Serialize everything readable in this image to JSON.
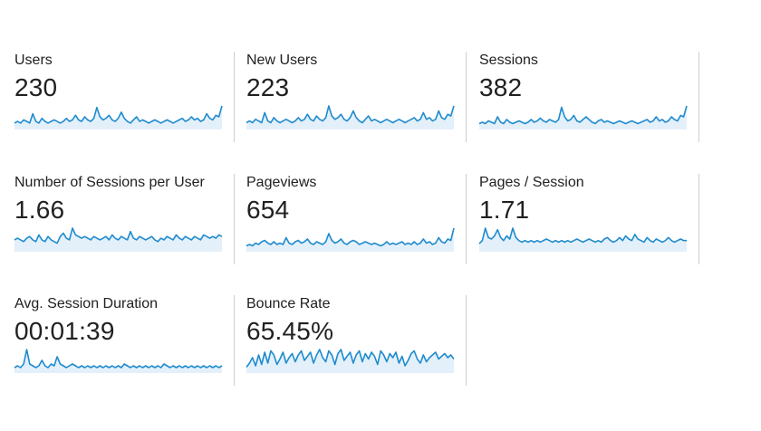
{
  "metrics": [
    {
      "label": "Users",
      "value": "230",
      "series": [
        3,
        4,
        3,
        5,
        4,
        3,
        9,
        4,
        3,
        6,
        4,
        3,
        4,
        5,
        4,
        3,
        4,
        6,
        4,
        5,
        8,
        5,
        4,
        7,
        5,
        4,
        6,
        13,
        7,
        5,
        6,
        8,
        5,
        4,
        6,
        10,
        6,
        4,
        3,
        5,
        7,
        4,
        5,
        4,
        3,
        4,
        5,
        4,
        3,
        4,
        5,
        4,
        3,
        4,
        5,
        6,
        4,
        5,
        7,
        5,
        6,
        4,
        5,
        9,
        6,
        5,
        8,
        7,
        14
      ]
    },
    {
      "label": "New Users",
      "value": "223",
      "series": [
        3,
        4,
        3,
        5,
        4,
        3,
        9,
        4,
        3,
        6,
        4,
        3,
        4,
        5,
        4,
        3,
        4,
        6,
        4,
        5,
        8,
        5,
        4,
        7,
        5,
        4,
        6,
        13,
        7,
        5,
        6,
        8,
        5,
        4,
        6,
        10,
        6,
        4,
        3,
        5,
        7,
        4,
        5,
        4,
        3,
        4,
        5,
        4,
        3,
        4,
        5,
        4,
        3,
        4,
        5,
        6,
        4,
        5,
        9,
        5,
        6,
        4,
        5,
        10,
        6,
        5,
        8,
        7,
        13
      ]
    },
    {
      "label": "Sessions",
      "value": "382",
      "series": [
        3,
        4,
        3,
        5,
        4,
        3,
        8,
        4,
        3,
        6,
        4,
        3,
        4,
        5,
        4,
        3,
        4,
        6,
        4,
        5,
        7,
        5,
        4,
        6,
        5,
        4,
        6,
        15,
        8,
        5,
        6,
        9,
        5,
        4,
        6,
        8,
        6,
        4,
        3,
        5,
        6,
        4,
        5,
        4,
        3,
        4,
        5,
        4,
        3,
        4,
        5,
        4,
        3,
        4,
        5,
        6,
        4,
        5,
        8,
        5,
        6,
        4,
        5,
        8,
        6,
        5,
        9,
        8,
        16
      ]
    },
    {
      "label": "Number of Sessions per User",
      "value": "1.66",
      "series": [
        6,
        7,
        6,
        5,
        7,
        8,
        6,
        5,
        9,
        6,
        5,
        8,
        6,
        5,
        4,
        8,
        10,
        7,
        6,
        13,
        9,
        8,
        7,
        8,
        7,
        6,
        8,
        7,
        6,
        7,
        8,
        6,
        9,
        7,
        6,
        8,
        7,
        6,
        11,
        7,
        6,
        8,
        7,
        6,
        7,
        8,
        6,
        5,
        7,
        6,
        8,
        7,
        6,
        9,
        7,
        6,
        8,
        7,
        6,
        8,
        7,
        6,
        9,
        8,
        7,
        8,
        7,
        9,
        8
      ]
    },
    {
      "label": "Pageviews",
      "value": "654",
      "series": [
        3,
        4,
        3,
        5,
        4,
        6,
        7,
        5,
        4,
        6,
        4,
        5,
        4,
        9,
        5,
        4,
        6,
        7,
        5,
        6,
        8,
        5,
        4,
        6,
        5,
        4,
        6,
        12,
        7,
        5,
        6,
        8,
        5,
        4,
        6,
        7,
        6,
        4,
        5,
        6,
        5,
        4,
        5,
        4,
        3,
        4,
        6,
        4,
        5,
        4,
        5,
        6,
        4,
        5,
        4,
        6,
        4,
        5,
        8,
        5,
        6,
        4,
        5,
        9,
        6,
        5,
        8,
        7,
        16
      ]
    },
    {
      "label": "Pages / Session",
      "value": "1.71",
      "series": [
        4,
        6,
        14,
        8,
        7,
        9,
        13,
        8,
        6,
        9,
        7,
        14,
        8,
        6,
        5,
        6,
        5,
        6,
        5,
        6,
        5,
        6,
        7,
        6,
        5,
        6,
        5,
        6,
        5,
        6,
        5,
        6,
        7,
        6,
        5,
        6,
        7,
        6,
        5,
        6,
        5,
        7,
        8,
        6,
        5,
        6,
        8,
        6,
        9,
        7,
        6,
        10,
        7,
        6,
        5,
        8,
        6,
        5,
        7,
        6,
        5,
        6,
        8,
        6,
        5,
        6,
        7,
        6,
        6
      ]
    },
    {
      "label": "Avg. Session Duration",
      "value": "00:01:39",
      "series": [
        2,
        3,
        2,
        4,
        12,
        4,
        3,
        2,
        3,
        6,
        3,
        2,
        4,
        3,
        8,
        4,
        3,
        2,
        3,
        4,
        3,
        2,
        3,
        2,
        3,
        2,
        3,
        2,
        3,
        2,
        3,
        2,
        3,
        2,
        3,
        2,
        4,
        3,
        2,
        3,
        2,
        3,
        2,
        3,
        2,
        3,
        2,
        3,
        2,
        4,
        3,
        2,
        3,
        2,
        3,
        2,
        3,
        2,
        3,
        2,
        3,
        2,
        3,
        2,
        3,
        2,
        3,
        2,
        3
      ]
    },
    {
      "label": "Bounce Rate",
      "value": "65.45%",
      "series": [
        3,
        6,
        10,
        4,
        12,
        5,
        14,
        6,
        15,
        12,
        5,
        9,
        14,
        6,
        10,
        13,
        7,
        12,
        15,
        8,
        11,
        14,
        6,
        12,
        16,
        10,
        7,
        15,
        12,
        5,
        13,
        16,
        8,
        11,
        14,
        6,
        12,
        15,
        7,
        13,
        9,
        14,
        11,
        5,
        15,
        12,
        7,
        13,
        10,
        14,
        6,
        11,
        4,
        8,
        13,
        15,
        9,
        6,
        12,
        7,
        10,
        12,
        14,
        9,
        11,
        13,
        10,
        12,
        9
      ]
    }
  ],
  "colors": {
    "sparkline_stroke": "#1f8bce",
    "sparkline_fill": "#e3f0fa",
    "divider": "#cfcfcf"
  }
}
